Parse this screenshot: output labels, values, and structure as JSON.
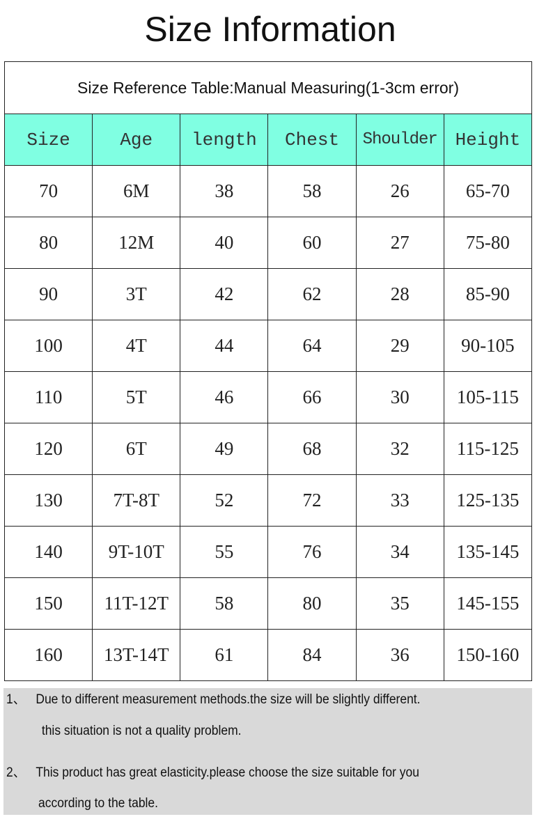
{
  "title": "Size Information",
  "table": {
    "caption": "Size Reference Table:Manual Measuring(1-3cm error)",
    "header_color": "#80ffe2",
    "columns": [
      "Size",
      "Age",
      "length",
      "Chest",
      "Shoulder",
      "Height"
    ],
    "rows": [
      [
        "70",
        "6M",
        "38",
        "58",
        "26",
        "65-70"
      ],
      [
        "80",
        "12M",
        "40",
        "60",
        "27",
        "75-80"
      ],
      [
        "90",
        "3T",
        "42",
        "62",
        "28",
        "85-90"
      ],
      [
        "100",
        "4T",
        "44",
        "64",
        "29",
        "90-105"
      ],
      [
        "110",
        "5T",
        "46",
        "66",
        "30",
        "105-115"
      ],
      [
        "120",
        "6T",
        "49",
        "68",
        "32",
        "115-125"
      ],
      [
        "130",
        "7T-8T",
        "52",
        "72",
        "33",
        "125-135"
      ],
      [
        "140",
        "9T-10T",
        "55",
        "76",
        "34",
        "135-145"
      ],
      [
        "150",
        "11T-12T",
        "58",
        "80",
        "35",
        "145-155"
      ],
      [
        "160",
        "13T-14T",
        "61",
        "84",
        "36",
        "150-160"
      ]
    ]
  },
  "notes": [
    {
      "number": "1、",
      "line1": "Due to different measurement methods.the size will be slightly different.",
      "line2": " this situation is not a quality problem."
    },
    {
      "number": "2、",
      "line1": "This product has great elasticity.please choose the size suitable for you",
      "line2": "according to the table."
    }
  ]
}
